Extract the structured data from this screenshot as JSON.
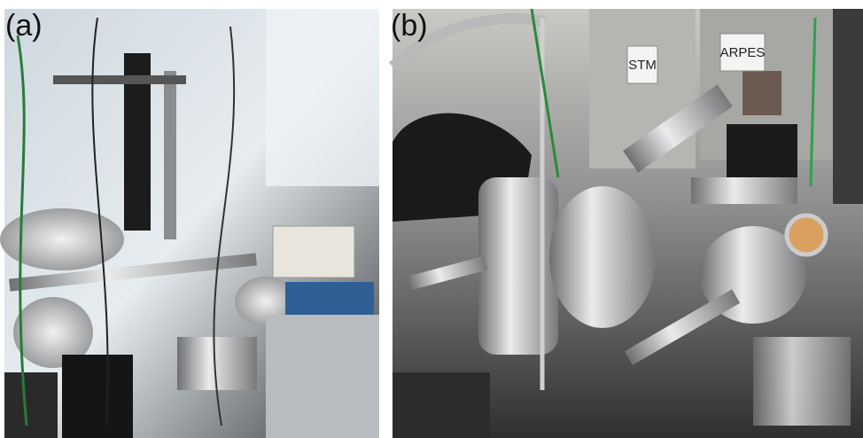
{
  "panels": [
    {
      "label": "(a)"
    },
    {
      "label": "(b)",
      "signs": [
        "STM",
        "ARPES"
      ]
    }
  ]
}
